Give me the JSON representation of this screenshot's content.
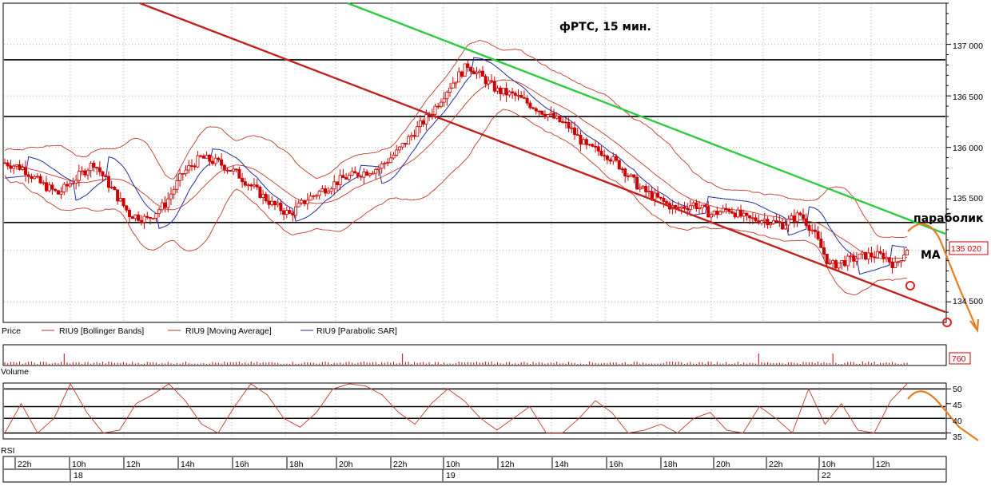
{
  "chart_data": [
    {
      "type": "candlestick",
      "title": "фРТС,  15 мин.",
      "pane_label": "Price",
      "legend": [
        {
          "name": "RIU9 [Bollinger Bands]",
          "color": "#c0392b"
        },
        {
          "name": "RIU9 [Moving Average]",
          "color": "#c0392b"
        },
        {
          "name": "RIU9 [Parabolic SAR]",
          "color": "#1f2fa0"
        }
      ],
      "y_ticks": [
        "137 000",
        "136 500",
        "136 000",
        "135 500",
        "134 500"
      ],
      "ylim": [
        134300,
        137400
      ],
      "last_price_label": "135 020",
      "last_price": 135020,
      "horizontal_levels": [
        136850,
        136300,
        135270
      ],
      "annotations": [
        "параболик",
        "МА"
      ],
      "colors": {
        "candle": "#cc0000",
        "bollinger": "#c0392b",
        "sar": "#1f2fa0",
        "trend_green": "#2ecc40",
        "trend_red": "#c0221e",
        "forecast": "#e67e22"
      },
      "price_path": [
        [
          0,
          135850
        ],
        [
          6,
          135800
        ],
        [
          12,
          135650
        ],
        [
          18,
          135550
        ],
        [
          24,
          135700
        ],
        [
          30,
          135850
        ],
        [
          36,
          135600
        ],
        [
          42,
          135350
        ],
        [
          48,
          135300
        ],
        [
          54,
          135450
        ],
        [
          60,
          135750
        ],
        [
          66,
          135900
        ],
        [
          72,
          135850
        ],
        [
          78,
          135750
        ],
        [
          84,
          135600
        ],
        [
          90,
          135450
        ],
        [
          96,
          135350
        ],
        [
          102,
          135500
        ],
        [
          108,
          135600
        ],
        [
          114,
          135700
        ],
        [
          120,
          135750
        ],
        [
          126,
          135800
        ],
        [
          132,
          135950
        ],
        [
          138,
          136150
        ],
        [
          144,
          136350
        ],
        [
          150,
          136600
        ],
        [
          156,
          136800
        ],
        [
          160,
          136700
        ],
        [
          166,
          136550
        ],
        [
          172,
          136500
        ],
        [
          178,
          136400
        ],
        [
          184,
          136300
        ],
        [
          190,
          136200
        ],
        [
          196,
          136000
        ],
        [
          202,
          135950
        ],
        [
          208,
          135800
        ],
        [
          214,
          135600
        ],
        [
          220,
          135500
        ],
        [
          226,
          135400
        ],
        [
          232,
          135450
        ],
        [
          238,
          135350
        ],
        [
          244,
          135400
        ],
        [
          250,
          135300
        ],
        [
          256,
          135300
        ],
        [
          262,
          135250
        ],
        [
          268,
          135350
        ],
        [
          272,
          135200
        ],
        [
          278,
          134850
        ],
        [
          284,
          134900
        ],
        [
          290,
          134950
        ],
        [
          296,
          134950
        ],
        [
          300,
          134850
        ],
        [
          304,
          135020
        ]
      ]
    },
    {
      "type": "bar",
      "pane_label": "Volume",
      "value_label": "760",
      "value": 760
    },
    {
      "type": "line",
      "pane_label": "RSI",
      "y_ticks": [
        "50",
        "45",
        "40",
        "35"
      ],
      "ylim": [
        33,
        52
      ],
      "levels": [
        50,
        44,
        40,
        35
      ],
      "values": [
        35,
        45,
        35,
        40,
        52,
        42,
        35,
        36,
        45,
        48,
        52,
        46,
        38,
        35,
        44,
        52,
        48,
        40,
        37,
        42,
        50,
        52,
        51,
        48,
        42,
        38,
        45,
        50,
        46,
        40,
        36,
        40,
        44,
        35,
        35,
        40,
        46,
        42,
        35,
        36,
        38,
        35,
        40,
        42,
        36,
        35,
        44,
        40,
        35,
        50,
        38,
        45,
        36,
        35,
        46,
        52
      ]
    }
  ],
  "time_axis": {
    "hour_labels": [
      "22h",
      "10h",
      "12h",
      "14h",
      "16h",
      "18h",
      "20h",
      "22h",
      "10h",
      "12h",
      "14h",
      "16h",
      "18h",
      "20h",
      "22h",
      "10h",
      "12h"
    ],
    "date_labels": [
      "18",
      "19",
      "22"
    ]
  }
}
